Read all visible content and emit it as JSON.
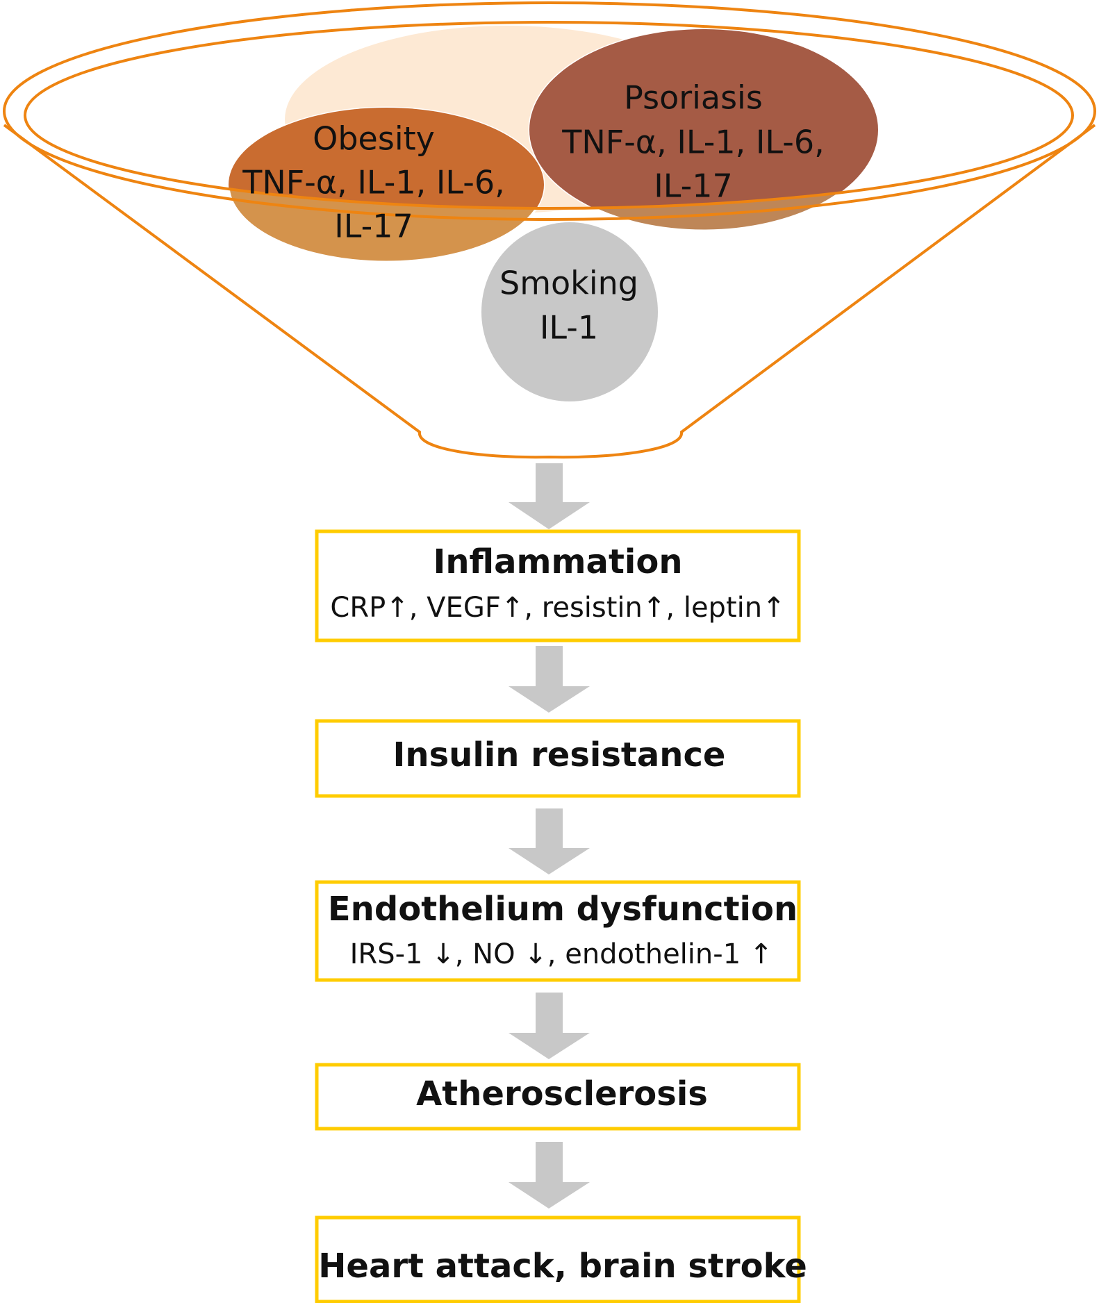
{
  "colors": {
    "funnel": "#EE8411",
    "obesity": "#C96C30",
    "obesity_lower": "#D4934C",
    "psoriasis": "#A55B45",
    "psoriasis_lower": "#BE8657",
    "smoking": "#C8C8C8",
    "beige": "#FDE9D4",
    "box_border": "#FFCC00",
    "arrow": "#C8C8C8"
  },
  "funnel": {
    "obesity": {
      "name": "Obesity",
      "line1": "TNF-α, IL-1, IL-6,",
      "line2": "IL-17"
    },
    "psoriasis": {
      "name": "Psoriasis",
      "line1": "TNF-α, IL-1, IL-6,",
      "line2": "IL-17"
    },
    "smoking": {
      "name": "Smoking",
      "line1": "IL-1"
    }
  },
  "steps": [
    {
      "title": "Inflammation",
      "detail": "CRP↑, VEGF↑, resistin↑, leptin↑"
    },
    {
      "title": "Insulin resistance"
    },
    {
      "title": "Endothelium dysfunction",
      "detail": "IRS-1 ↓, NO ↓, endothelin-1 ↑"
    },
    {
      "title": "Atherosclerosis"
    },
    {
      "title": "Heart attack, brain stroke"
    }
  ]
}
